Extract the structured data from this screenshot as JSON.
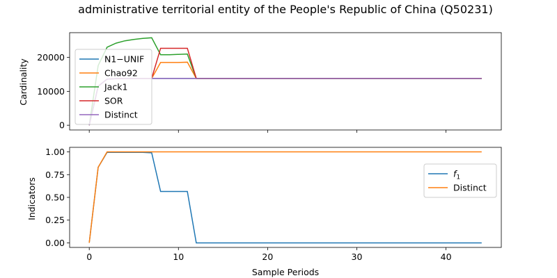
{
  "chart_data": {
    "title": "administrative territorial entity of the People's Republic of China (Q50231)",
    "colors": {
      "blue": "#1f77b4",
      "orange": "#ff7f0e",
      "green": "#2ca02c",
      "red": "#d62728",
      "purple": "#9467bd"
    },
    "panels": [
      {
        "type": "line",
        "ylabel": "Cardinality",
        "xlim": [
          -2.2,
          46.2
        ],
        "ylim": [
          -1400,
          27300
        ],
        "xticks": [
          0,
          10,
          20,
          30,
          40
        ],
        "show_xtick_labels": false,
        "yticks": [
          0,
          10000,
          20000
        ],
        "ytick_labels": [
          "0",
          "10000",
          "20000"
        ],
        "legend_position": "upper-left",
        "x": [
          0,
          1,
          2,
          3,
          4,
          5,
          6,
          7,
          8,
          9,
          10,
          11,
          12,
          13,
          14,
          15,
          16,
          17,
          18,
          19,
          20,
          21,
          22,
          23,
          24,
          25,
          26,
          27,
          28,
          29,
          30,
          31,
          32,
          33,
          34,
          35,
          36,
          37,
          38,
          39,
          40,
          41,
          42,
          43,
          44
        ],
        "series": [
          {
            "name": "N1−UNIF",
            "color": "blue",
            "values": [
              0,
              11500,
              13600,
              13750,
              13800,
              13800,
              13800,
              13800,
              13800,
              13800,
              13800,
              13800,
              13800,
              13800,
              13800,
              13800,
              13800,
              13800,
              13800,
              13800,
              13800,
              13800,
              13800,
              13800,
              13800,
              13800,
              13800,
              13800,
              13800,
              13800,
              13800,
              13800,
              13800,
              13800,
              13800,
              13800,
              13800,
              13800,
              13800,
              13800,
              13800,
              13800,
              13800,
              13800,
              13800
            ]
          },
          {
            "name": "Chao92",
            "color": "orange",
            "values": [
              0,
              11500,
              13600,
              13750,
              13800,
              13800,
              13800,
              13800,
              18500,
              18500,
              18500,
              18600,
              13800,
              13800,
              13800,
              13800,
              13800,
              13800,
              13800,
              13800,
              13800,
              13800,
              13800,
              13800,
              13800,
              13800,
              13800,
              13800,
              13800,
              13800,
              13800,
              13800,
              13800,
              13800,
              13800,
              13800,
              13800,
              13800,
              13800,
              13800,
              13800,
              13800,
              13800,
              13800,
              13800
            ]
          },
          {
            "name": "Jack1",
            "color": "green",
            "values": [
              0,
              17600,
              23000,
              24200,
              24900,
              25300,
              25600,
              25800,
              20800,
              20800,
              20900,
              21000,
              13800,
              13800,
              13800,
              13800,
              13800,
              13800,
              13800,
              13800,
              13800,
              13800,
              13800,
              13800,
              13800,
              13800,
              13800,
              13800,
              13800,
              13800,
              13800,
              13800,
              13800,
              13800,
              13800,
              13800,
              13800,
              13800,
              13800,
              13800,
              13800,
              13800,
              13800,
              13800,
              13800
            ]
          },
          {
            "name": "SOR",
            "color": "red",
            "values": [
              0,
              11500,
              13600,
              13750,
              13800,
              13800,
              13800,
              13800,
              22700,
              22700,
              22700,
              22700,
              13800,
              13800,
              13800,
              13800,
              13800,
              13800,
              13800,
              13800,
              13800,
              13800,
              13800,
              13800,
              13800,
              13800,
              13800,
              13800,
              13800,
              13800,
              13800,
              13800,
              13800,
              13800,
              13800,
              13800,
              13800,
              13800,
              13800,
              13800,
              13800,
              13800,
              13800,
              13800,
              13800
            ]
          },
          {
            "name": "Distinct",
            "color": "purple",
            "values": [
              0,
              11500,
              13600,
              13750,
              13800,
              13800,
              13800,
              13800,
              13800,
              13800,
              13800,
              13800,
              13800,
              13800,
              13800,
              13800,
              13800,
              13800,
              13800,
              13800,
              13800,
              13800,
              13800,
              13800,
              13800,
              13800,
              13800,
              13800,
              13800,
              13800,
              13800,
              13800,
              13800,
              13800,
              13800,
              13800,
              13800,
              13800,
              13800,
              13800,
              13800,
              13800,
              13800,
              13800,
              13800
            ]
          }
        ]
      },
      {
        "type": "line",
        "ylabel": "Indicators",
        "xlabel": "Sample Periods",
        "xlim": [
          -2.2,
          46.2
        ],
        "ylim": [
          -0.05,
          1.05
        ],
        "xticks": [
          0,
          10,
          20,
          30,
          40
        ],
        "xtick_labels": [
          "0",
          "10",
          "20",
          "30",
          "40"
        ],
        "show_xtick_labels": true,
        "yticks": [
          0,
          0.25,
          0.5,
          0.75,
          1.0
        ],
        "ytick_labels": [
          "0.00",
          "0.25",
          "0.50",
          "0.75",
          "1.00"
        ],
        "legend_position": "upper-right",
        "x": [
          0,
          1,
          2,
          3,
          4,
          5,
          6,
          7,
          8,
          9,
          10,
          11,
          12,
          13,
          14,
          15,
          16,
          17,
          18,
          19,
          20,
          21,
          22,
          23,
          24,
          25,
          26,
          27,
          28,
          29,
          30,
          31,
          32,
          33,
          34,
          35,
          36,
          37,
          38,
          39,
          40,
          41,
          42,
          43,
          44
        ],
        "series": [
          {
            "name": "f",
            "name_subscript": "1",
            "color": "blue",
            "values": [
              0,
              0.83,
              0.995,
              0.995,
              0.995,
              0.995,
              0.995,
              0.99,
              0.565,
              0.565,
              0.565,
              0.565,
              0,
              0,
              0,
              0,
              0,
              0,
              0,
              0,
              0,
              0,
              0,
              0,
              0,
              0,
              0,
              0,
              0,
              0,
              0,
              0,
              0,
              0,
              0,
              0,
              0,
              0,
              0,
              0,
              0,
              0,
              0,
              0,
              0
            ]
          },
          {
            "name": "Distinct",
            "color": "orange",
            "values": [
              0,
              0.83,
              1,
              1,
              1,
              1,
              1,
              1,
              1,
              1,
              1,
              1,
              1,
              1,
              1,
              1,
              1,
              1,
              1,
              1,
              1,
              1,
              1,
              1,
              1,
              1,
              1,
              1,
              1,
              1,
              1,
              1,
              1,
              1,
              1,
              1,
              1,
              1,
              1,
              1,
              1,
              1,
              1,
              1,
              1
            ]
          }
        ]
      }
    ]
  }
}
